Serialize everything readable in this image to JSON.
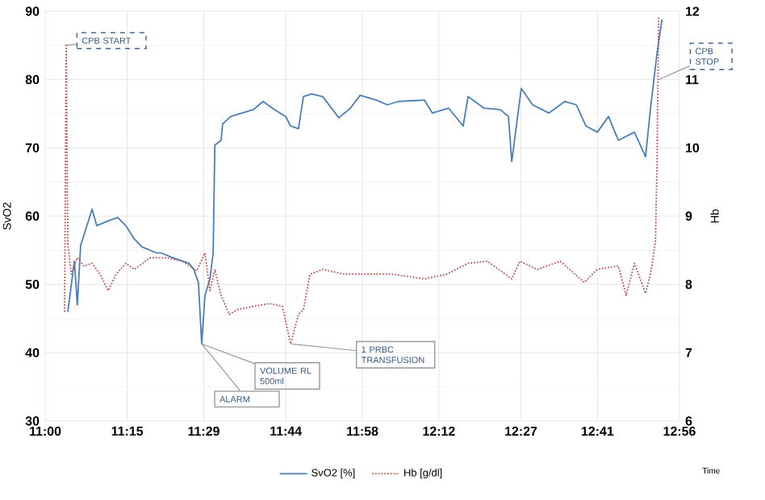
{
  "chart_data": {
    "type": "line",
    "xlabel": "Time",
    "ylabel": "SvO2",
    "y2label": "Hb",
    "xlim": [
      11.0,
      12.9333
    ],
    "xticks": [
      {
        "value": 11.0,
        "label": "11:00"
      },
      {
        "value": 11.25,
        "label": "11:15"
      },
      {
        "value": 11.4833,
        "label": "11:29"
      },
      {
        "value": 11.7333,
        "label": "11:44"
      },
      {
        "value": 11.9667,
        "label": "11:58"
      },
      {
        "value": 12.2,
        "label": "12:12"
      },
      {
        "value": 12.45,
        "label": "12:27"
      },
      {
        "value": 12.6833,
        "label": "12:41"
      },
      {
        "value": 12.9333,
        "label": "12:56"
      }
    ],
    "ylim": [
      30,
      90
    ],
    "yticks": [
      30,
      40,
      50,
      60,
      70,
      80,
      90
    ],
    "y2lim": [
      6,
      12
    ],
    "y2ticks": [
      6,
      7,
      8,
      9,
      10,
      11,
      12
    ],
    "grid": true,
    "legend": "bottom",
    "marker": "none",
    "series": [
      {
        "name": "SvO2 [%]",
        "color": "#4a7ebb",
        "line_style": "solid",
        "x": [
          11.069,
          11.089,
          11.098,
          11.108,
          11.143,
          11.157,
          11.192,
          11.221,
          11.246,
          11.271,
          11.295,
          11.34,
          11.354,
          11.389,
          11.438,
          11.453,
          11.467,
          11.477,
          11.487,
          11.502,
          11.512,
          11.517,
          11.536,
          11.541,
          11.566,
          11.6,
          11.635,
          11.664,
          11.699,
          11.733,
          11.748,
          11.772,
          11.787,
          11.812,
          11.846,
          11.895,
          11.93,
          11.96,
          12.009,
          12.043,
          12.077,
          12.156,
          12.18,
          12.23,
          12.274,
          12.289,
          12.338,
          12.387,
          12.412,
          12.422,
          12.437,
          12.451,
          12.486,
          12.535,
          12.584,
          12.619,
          12.648,
          12.683,
          12.717,
          12.747,
          12.796,
          12.83,
          12.845,
          12.865,
          12.88
        ],
        "values": [
          46,
          53.4,
          47,
          55.7,
          61,
          58.6,
          59.3,
          59.8,
          58.6,
          56.7,
          55.5,
          54.6,
          54.6,
          53.9,
          53.1,
          52.2,
          50.3,
          41.3,
          48.4,
          50.8,
          54.6,
          70.4,
          71.1,
          73.5,
          74.6,
          75.1,
          75.6,
          76.8,
          75.6,
          74.6,
          73.2,
          72.8,
          77.5,
          77.9,
          77.5,
          74.4,
          75.8,
          77.7,
          77,
          76.3,
          76.8,
          77,
          75.1,
          75.8,
          73.2,
          77.5,
          75.8,
          75.6,
          74.6,
          68,
          73.5,
          78.7,
          76.3,
          75.1,
          76.8,
          76.3,
          73.2,
          72.3,
          74.6,
          71.1,
          72.3,
          68.7,
          75.8,
          83.9,
          88.8
        ]
      },
      {
        "name": "Hb [g/dl]",
        "color": "#c0504d",
        "line_style": "dotted",
        "axis": "y2",
        "x": [
          11.059,
          11.064,
          11.069,
          11.079,
          11.098,
          11.118,
          11.143,
          11.167,
          11.192,
          11.216,
          11.246,
          11.271,
          11.32,
          11.369,
          11.418,
          11.462,
          11.487,
          11.502,
          11.517,
          11.536,
          11.561,
          11.585,
          11.635,
          11.684,
          11.723,
          11.748,
          11.772,
          11.787,
          11.807,
          11.846,
          11.91,
          11.979,
          12.043,
          12.058,
          12.156,
          12.225,
          12.289,
          12.348,
          12.422,
          12.447,
          12.5,
          12.57,
          12.643,
          12.683,
          12.747,
          12.771,
          12.796,
          12.83,
          12.845,
          12.86,
          12.865,
          12.87
        ],
        "values": [
          7.6,
          11.5,
          8.6,
          8.15,
          8.39,
          8.27,
          8.31,
          8.15,
          7.91,
          8.15,
          8.31,
          8.22,
          8.39,
          8.39,
          8.34,
          8.2,
          8.46,
          7.91,
          8.22,
          7.84,
          7.56,
          7.63,
          7.68,
          7.72,
          7.68,
          7.13,
          7.56,
          7.63,
          8.15,
          8.22,
          8.15,
          8.15,
          8.15,
          8.15,
          8.08,
          8.15,
          8.31,
          8.34,
          8.08,
          8.34,
          8.22,
          8.34,
          8.03,
          8.22,
          8.27,
          7.84,
          8.31,
          7.87,
          8.15,
          8.62,
          9.8,
          11.93
        ]
      }
    ],
    "annotations": [
      {
        "text": "CPB START",
        "x": 11.06,
        "y": 85
      },
      {
        "text": "CPB STOP",
        "x": 12.87,
        "y": 80
      },
      {
        "text": "VOLUME RL 500ml",
        "x": 11.477,
        "y": 41.3
      },
      {
        "text": "ALARM",
        "x": 11.477,
        "y": 41.3
      },
      {
        "text": "1 PRBC TRANSFUSION",
        "x": 11.748,
        "y": 41.3
      }
    ]
  }
}
